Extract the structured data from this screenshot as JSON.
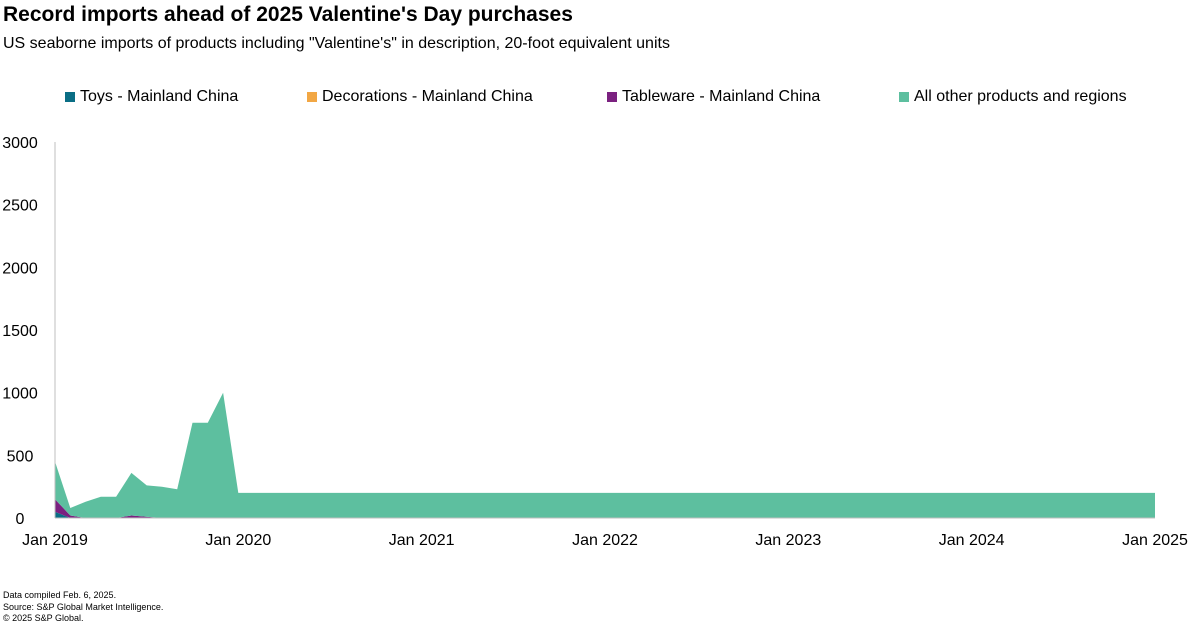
{
  "chart_data": {
    "type": "area",
    "stacked": true,
    "title": "Record imports ahead of 2025 Valentine's Day purchases",
    "subtitle": "US seaborne imports of products including \"Valentine's\" in description, 20-foot equivalent units",
    "xlabel": "",
    "ylabel": "",
    "ylim": [
      0,
      3000
    ],
    "yticks": [
      0,
      500,
      1000,
      1500,
      2000,
      2500,
      3000
    ],
    "x_start": "Jan 2019",
    "x_end": "Jan 2025",
    "xticks": [
      "Jan 2019",
      "Jan 2020",
      "Jan 2021",
      "Jan 2022",
      "Jan 2023",
      "Jan 2024",
      "Jan 2025"
    ],
    "grid": false,
    "legend_position": "top",
    "categories": [
      "Jan 2019",
      "Feb 2019",
      "Mar 2019",
      "Apr 2019",
      "May 2019",
      "Jun 2019",
      "Jul 2019",
      "Aug 2019",
      "Sep 2019",
      "Oct 2019",
      "Nov 2019",
      "Dec 2019",
      "Jan 2020",
      "Feb 2020",
      "Mar 2020",
      "Apr 2020",
      "May 2020",
      "Jun 2020",
      "Jul 2020",
      "Aug 2020",
      "Sep 2020",
      "Oct 2020",
      "Nov 2020",
      "Dec 2020",
      "Jan 2021",
      "Feb 2021",
      "Mar 2021",
      "Apr 2021",
      "May 2021",
      "Jun 2021",
      "Jul 2021",
      "Aug 2021",
      "Sep 2021",
      "Oct 2021",
      "Nov 2021",
      "Dec 2021",
      "Jan 2022",
      "Feb 2022",
      "Mar 2022",
      "Apr 2022",
      "May 2022",
      "Jun 2022",
      "Jul 2022",
      "Aug 2022",
      "Sep 2022",
      "Oct 2022",
      "Nov 2022",
      "Dec 2022",
      "Jan 2023",
      "Feb 2023",
      "Mar 2023",
      "Apr 2023",
      "May 2023",
      "Jun 2023",
      "Jul 2023",
      "Aug 2023",
      "Sep 2023",
      "Oct 2023",
      "Nov 2023",
      "Dec 2023",
      "Jan 2024",
      "Feb 2024",
      "Mar 2024",
      "Apr 2024",
      "May 2024",
      "Jun 2024",
      "Jul 2024",
      "Aug 2024",
      "Sep 2024",
      "Oct 2024",
      "Nov 2024",
      "Dec 2024",
      "Jan 2025"
    ],
    "series": [
      {
        "name": "Toys - Mainland China",
        "color": "#0a6e85",
        "values": [
          50,
          0,
          0,
          0,
          0,
          0,
          0,
          0,
          0,
          0,
          0,
          0,
          0,
          0,
          0,
          0,
          0,
          0,
          0,
          0,
          0,
          0,
          0,
          0,
          0,
          0,
          0,
          0,
          0,
          0,
          0,
          0,
          0,
          0,
          0,
          0,
          0,
          0,
          0,
          0,
          0,
          0,
          0,
          0,
          0,
          0,
          0,
          0,
          0,
          0,
          0,
          0,
          0,
          0,
          0,
          0,
          0,
          0,
          0,
          0,
          0,
          0,
          0,
          0,
          0,
          0,
          0,
          0,
          0,
          0,
          0,
          0,
          0
        ]
      },
      {
        "name": "Decorations - Mainland China",
        "color": "#f2a744",
        "values": [
          0,
          0,
          0,
          0,
          0,
          0,
          0,
          0,
          0,
          0,
          0,
          0,
          0,
          0,
          0,
          0,
          0,
          0,
          0,
          0,
          0,
          0,
          0,
          0,
          0,
          0,
          0,
          0,
          0,
          0,
          0,
          0,
          0,
          0,
          0,
          0,
          0,
          0,
          0,
          0,
          0,
          0,
          0,
          0,
          0,
          0,
          0,
          0,
          0,
          0,
          0,
          0,
          0,
          0,
          0,
          0,
          0,
          0,
          0,
          0,
          0,
          0,
          0,
          0,
          0,
          0,
          0,
          0,
          0,
          0,
          0,
          0,
          0
        ]
      },
      {
        "name": "Tableware - Mainland China",
        "color": "#7b2180",
        "values": [
          100,
          20,
          0,
          0,
          0,
          20,
          10,
          0,
          0,
          0,
          0,
          0,
          0,
          0,
          0,
          0,
          0,
          0,
          0,
          0,
          0,
          0,
          0,
          0,
          0,
          0,
          0,
          0,
          0,
          0,
          0,
          0,
          0,
          0,
          0,
          0,
          0,
          0,
          0,
          0,
          0,
          0,
          0,
          0,
          0,
          0,
          0,
          0,
          0,
          0,
          0,
          0,
          0,
          0,
          0,
          0,
          0,
          0,
          0,
          0,
          0,
          0,
          0,
          0,
          0,
          0,
          0,
          0,
          0,
          0,
          0,
          0,
          0
        ]
      },
      {
        "name": "All other products and regions",
        "color": "#5dbf9f",
        "values": [
          300,
          60,
          130,
          170,
          170,
          340,
          250,
          250,
          230,
          760,
          760,
          1000,
          200,
          200,
          200,
          200,
          200,
          200,
          200,
          200,
          200,
          200,
          200,
          200,
          200,
          200,
          200,
          200,
          200,
          200,
          200,
          200,
          200,
          200,
          200,
          200,
          200,
          200,
          200,
          200,
          200,
          200,
          200,
          200,
          200,
          200,
          200,
          200,
          200,
          200,
          200,
          200,
          200,
          200,
          200,
          200,
          200,
          200,
          200,
          200,
          200,
          200,
          200,
          200,
          200,
          200,
          200,
          200,
          200,
          200,
          200,
          200,
          200
        ]
      }
    ]
  },
  "footer": {
    "note": "Data compiled Feb. 6, 2025.",
    "source": "Source: S&P Global Market Intelligence.",
    "copyright": "© 2025 S&P Global."
  }
}
